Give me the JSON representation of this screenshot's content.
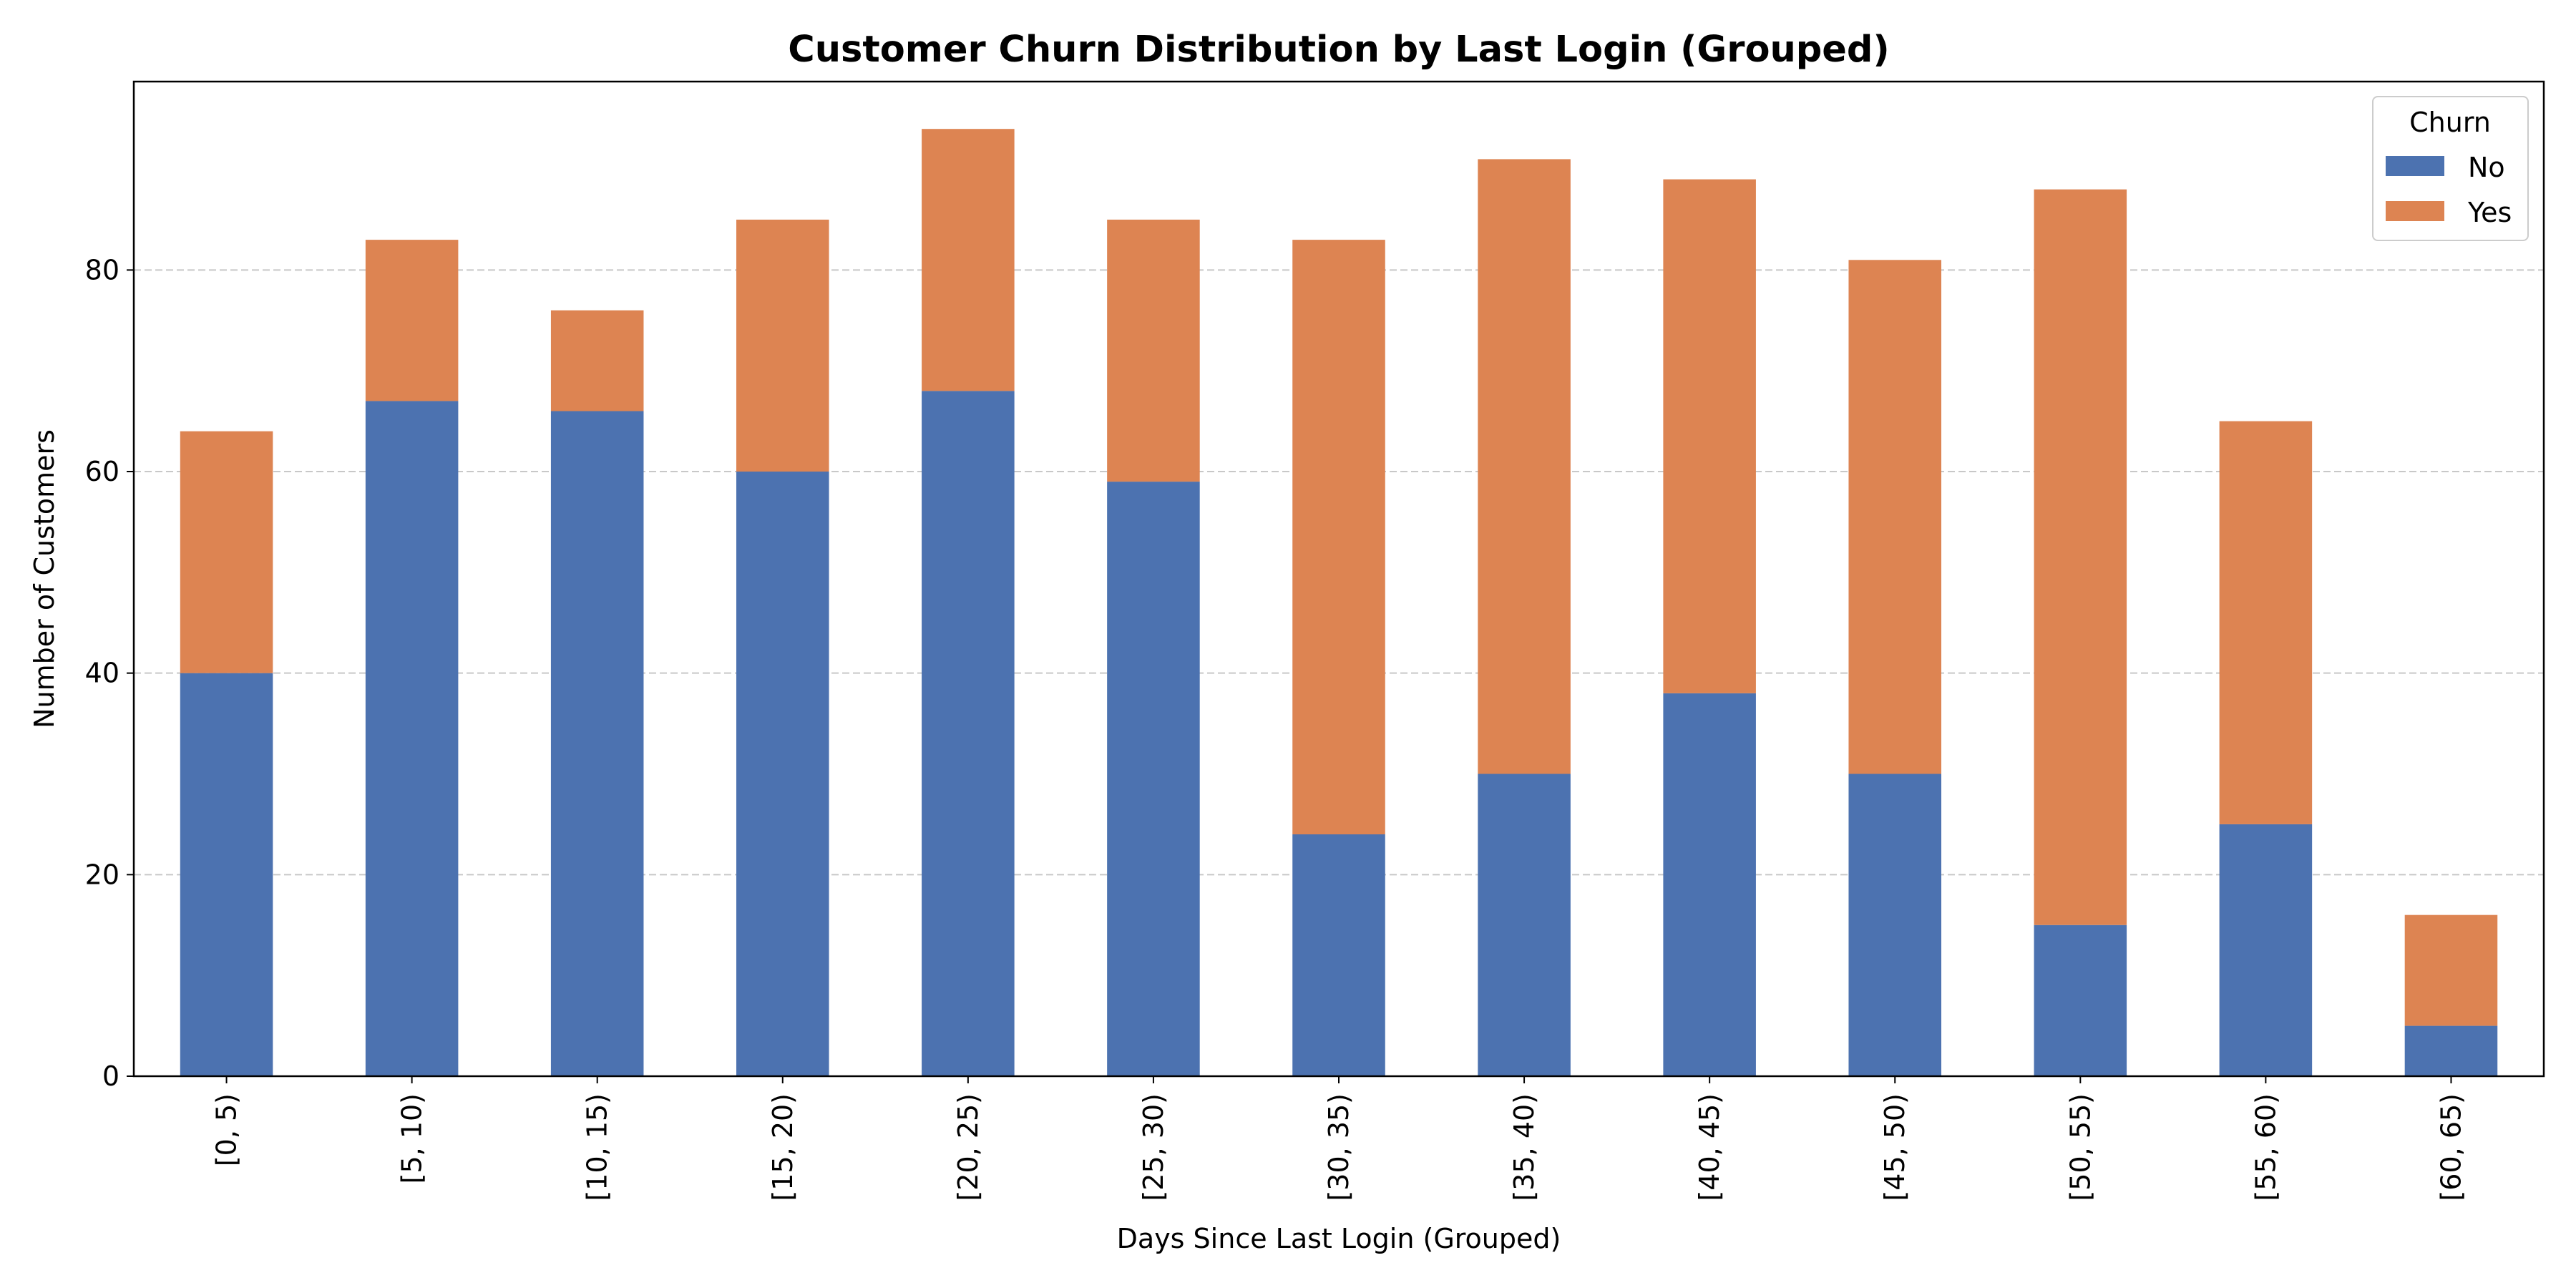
{
  "chart_data": {
    "type": "bar",
    "stacked": true,
    "title": "Customer Churn Distribution by Last Login (Grouped)",
    "xlabel": "Days Since Last Login (Grouped)",
    "ylabel": "Number of Customers",
    "categories": [
      "[0, 5)",
      "[5, 10)",
      "[10, 15)",
      "[15, 20)",
      "[20, 25)",
      "[25, 30)",
      "[30, 35)",
      "[35, 40)",
      "[40, 45)",
      "[45, 50)",
      "[50, 55)",
      "[55, 60)",
      "[60, 65)"
    ],
    "series": [
      {
        "name": "No",
        "color": "#4c72b0",
        "values": [
          40,
          67,
          66,
          60,
          68,
          59,
          24,
          30,
          38,
          30,
          15,
          25,
          5
        ]
      },
      {
        "name": "Yes",
        "color": "#dd8452",
        "values": [
          24,
          16,
          10,
          25,
          26,
          26,
          59,
          61,
          51,
          51,
          73,
          40,
          11
        ]
      }
    ],
    "ylim": [
      0,
      98.7
    ],
    "yticks": [
      0,
      20,
      40,
      60,
      80
    ],
    "grid": "y-dashed",
    "legend": {
      "title": "Churn",
      "placement": "top-right"
    }
  }
}
